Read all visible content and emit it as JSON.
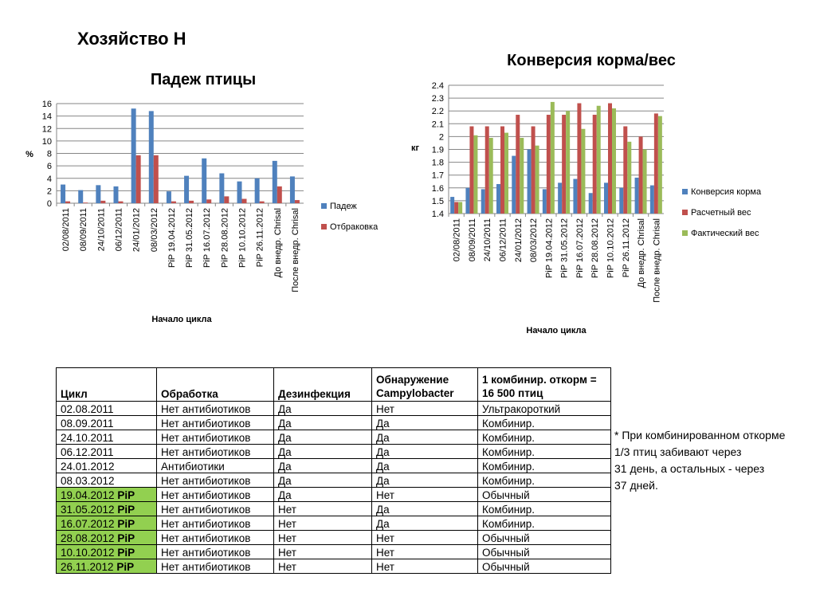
{
  "slide_title": "Хозяйство Н",
  "chart_data": [
    {
      "type": "bar",
      "title": "Падеж птицы",
      "xlabel": "Начало цикла",
      "ylabel": "%",
      "ylim": [
        0,
        16
      ],
      "yticks": [
        "0",
        "2",
        "4",
        "6",
        "8",
        "10",
        "12",
        "14",
        "16"
      ],
      "grid": true,
      "legend": "right",
      "categories": [
        "02/08/2011",
        "08/09/2011",
        "24/10/2011",
        "06/12/2011",
        "24/01/2012",
        "08/03/2012",
        "PiP 19.04.2012",
        "PiP 31.05.2012",
        "PiP 16.07.2012",
        "PiP 28.08.2012",
        "PiP 10.10.2012",
        "PiP 26.11.2012",
        "До внедр. Chrisal",
        "После внедр. Chrisal"
      ],
      "series": [
        {
          "name": "Падеж",
          "color": "#4f81bd",
          "values": [
            3.0,
            2.1,
            2.9,
            2.7,
            15.2,
            14.8,
            1.9,
            4.4,
            7.2,
            4.8,
            3.5,
            4.0,
            6.8,
            4.3
          ]
        },
        {
          "name": "Отбраковка",
          "color": "#c0504d",
          "values": [
            0.3,
            0.1,
            0.4,
            0.3,
            7.7,
            7.7,
            0.3,
            0.4,
            0.6,
            1.1,
            0.7,
            0.3,
            2.7,
            0.5
          ]
        }
      ]
    },
    {
      "type": "bar",
      "title": "Конверсия корма/вес",
      "xlabel": "Начало цикла",
      "ylabel": "кг",
      "ylim": [
        1.4,
        2.4
      ],
      "yticks": [
        "1.4",
        "1.5",
        "1.6",
        "1.7",
        "1.8",
        "1.9",
        "2",
        "2.1",
        "2.2",
        "2.3",
        "2.4"
      ],
      "grid": true,
      "legend": "right",
      "categories": [
        "02/08/2011",
        "08/09/2011",
        "24/10/2011",
        "06/12/2011",
        "24/01/2012",
        "08/03/2012",
        "PiP 19.04.2012",
        "PiP 31.05.2012",
        "PiP 16.07.2012",
        "PiP 28.08.2012",
        "PiP 10.10.2012",
        "PiP 26.11.2012",
        "До внедр. Chrisal",
        "После внедр. Chrisal"
      ],
      "series": [
        {
          "name": "Конверсия корма",
          "color": "#4f81bd",
          "values": [
            1.53,
            1.6,
            1.59,
            1.63,
            1.85,
            1.9,
            1.59,
            1.64,
            1.67,
            1.56,
            1.64,
            1.6,
            1.68,
            1.62
          ]
        },
        {
          "name": "Расчетный вес",
          "color": "#c0504d",
          "values": [
            1.49,
            2.08,
            2.08,
            2.08,
            2.17,
            2.08,
            2.17,
            2.17,
            2.26,
            2.17,
            2.26,
            2.08,
            2.0,
            2.18
          ]
        },
        {
          "name": "Фактический вес",
          "color": "#9bbb59",
          "values": [
            1.49,
            2.01,
            1.99,
            2.03,
            1.99,
            1.93,
            2.27,
            2.2,
            2.06,
            2.24,
            2.22,
            1.96,
            1.9,
            2.16
          ]
        }
      ]
    }
  ],
  "table": {
    "headers": [
      "Цикл",
      "Обработка",
      "Дезинфекция",
      "Обнаружение Campylobacter",
      "1 комбинир. откорм = 16 500 птиц"
    ],
    "rows": [
      {
        "cycle": "02.08.2011",
        "pip": "",
        "highlight": false,
        "treatment": "Нет антибиотиков",
        "disinfection": "Да",
        "campylobacter": "Нет",
        "feeding": "Ультракороткий"
      },
      {
        "cycle": "08.09.2011",
        "pip": "",
        "highlight": false,
        "treatment": "Нет антибиотиков",
        "disinfection": "Да",
        "campylobacter": "Да",
        "feeding": "Комбинир."
      },
      {
        "cycle": "24.10.2011",
        "pip": "",
        "highlight": false,
        "treatment": "Нет антибиотиков",
        "disinfection": "Да",
        "campylobacter": "Да",
        "feeding": "Комбинир."
      },
      {
        "cycle": "06.12.2011",
        "pip": "",
        "highlight": false,
        "treatment": "Нет антибиотиков",
        "disinfection": "Да",
        "campylobacter": "Да",
        "feeding": "Комбинир."
      },
      {
        "cycle": "24.01.2012",
        "pip": "",
        "highlight": false,
        "treatment": "Антибиотики",
        "disinfection": "Да",
        "campylobacter": "Да",
        "feeding": "Комбинир."
      },
      {
        "cycle": "08.03.2012",
        "pip": "",
        "highlight": false,
        "treatment": "Нет антибиотиков",
        "disinfection": "Да",
        "campylobacter": "Да",
        "feeding": "Комбинир."
      },
      {
        "cycle": "19.04.2012",
        "pip": "PiP",
        "highlight": true,
        "treatment": "Нет антибиотиков",
        "disinfection": "Да",
        "campylobacter": "Нет",
        "feeding": "Обычный"
      },
      {
        "cycle": "31.05.2012",
        "pip": "PiP",
        "highlight": true,
        "treatment": "Нет антибиотиков",
        "disinfection": "Нет",
        "campylobacter": "Да",
        "feeding": "Комбинир."
      },
      {
        "cycle": "16.07.2012",
        "pip": "PiP",
        "highlight": true,
        "treatment": "Нет антибиотиков",
        "disinfection": "Нет",
        "campylobacter": "Да",
        "feeding": "Комбинир."
      },
      {
        "cycle": "28.08.2012",
        "pip": "PiP",
        "highlight": true,
        "treatment": "Нет антибиотиков",
        "disinfection": "Нет",
        "campylobacter": "Нет",
        "feeding": "Обычный"
      },
      {
        "cycle": "10.10.2012",
        "pip": "PiP",
        "highlight": true,
        "treatment": "Нет антибиотиков",
        "disinfection": "Нет",
        "campylobacter": "Нет",
        "feeding": "Обычный"
      },
      {
        "cycle": "26.11.2012",
        "pip": "PiP",
        "highlight": true,
        "treatment": "Нет антибиотиков",
        "disinfection": "Нет",
        "campylobacter": "Нет",
        "feeding": "Обычный"
      }
    ]
  },
  "note": {
    "lines": [
      "* При комбинированном откорме",
      "1/3 птиц забивают через",
      "31 день, а остальных - через",
      "37 дней."
    ]
  }
}
